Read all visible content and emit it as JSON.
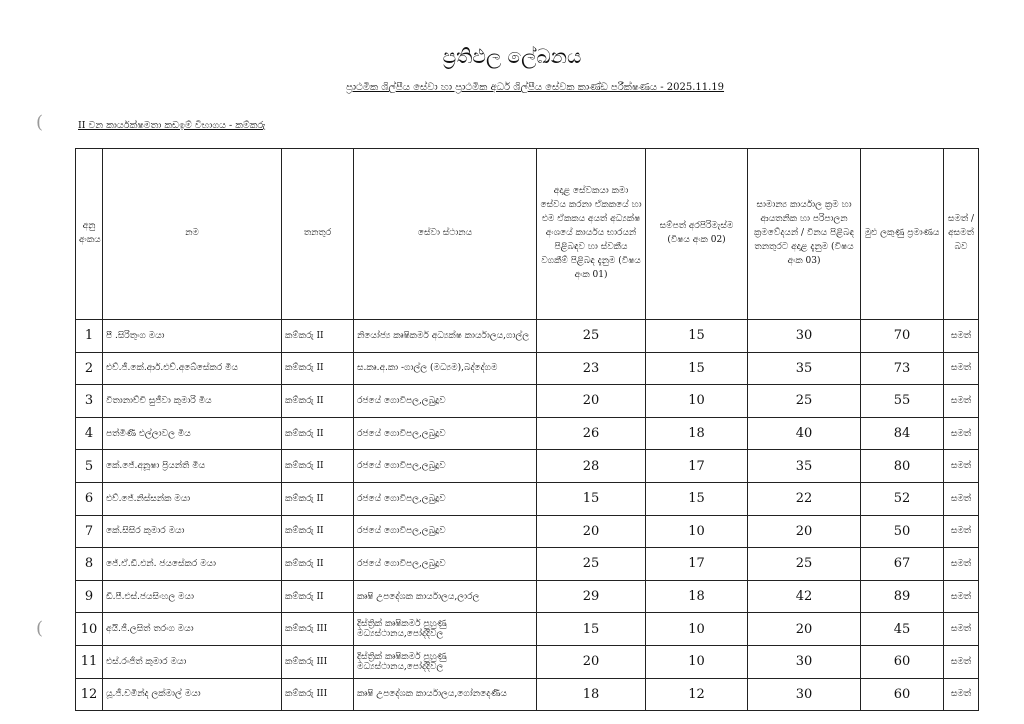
{
  "document": {
    "title": "ප්‍රතිඵල ලේඛනය",
    "subtitle": "ප්‍රාථමික ශිල්පීය සේවා හා ප්‍රාථමික අර්ධ ශිල්පීය සේවක කාණ්ඩ පරීක්ෂණය - 2025.11.19",
    "section": "II වන කාර්යක්ෂමතා කඩඉම් විභාගය - කම්කරු"
  },
  "table": {
    "headers": [
      "අනු අංකය",
      "නම",
      "තනතුර",
      "සේවා ස්ථානය",
      "අදාළ සේවකයා කමා සේවය කරනා ඒකකයේ හා එම ඒකකය අයත් අධ්‍යක්ෂ අංශයේ කාර්යය භාරයන් පිළිබඳව හා ස්වකීය වගකීම් පිළිබඳ දැනුම (විෂය අංක 01)",
      "සම්පත් අරපිරිමැස්ම (විෂය අංක 02)",
      "සාමාන්‍ය කාර්යාල ක්‍රම හා ආයතනික හා පරිපාලන ක්‍රමවේදයන් / විනය පිළිබඳ තනතුරට අදාළ දැනුම (විෂය අංක 03)",
      "මුළු ලකුණු ප්‍රමාණය",
      "සමත් / අසමත් බව"
    ],
    "rows": [
      {
        "no": "1",
        "name": "පී .සිරිතුංග මයා",
        "post": "කම්කරු II",
        "station": "නියෝජ්‍ය කෘෂිකර්ම අධ්‍යක්ෂ කාර්යාලය,ගාල්ල",
        "s1": "25",
        "s2": "15",
        "s3": "30",
        "total": "70",
        "result": "සමත්"
      },
      {
        "no": "2",
        "name": "එච්.ජී.කේ.ආර්.එච්.අබේසේකර මිය",
        "post": "කම්කරු II",
        "station": "ස.කෘ.අ.කා -ගාල්ල (මධ්‍යම),බද්දේගම",
        "s1": "23",
        "s2": "15",
        "s3": "35",
        "total": "73",
        "result": "සමත්"
      },
      {
        "no": "3",
        "name": "විතානාච්චි සුජීවා කුමාරි මිය",
        "post": "කම්කරු II",
        "station": "රජයේ ගොවිපල,ලබුදූව",
        "s1": "20",
        "s2": "10",
        "s3": "25",
        "total": "55",
        "result": "සමත්"
      },
      {
        "no": "4",
        "name": "පත්මිණී එල්ලාවල මිය",
        "post": "කම්කරු II",
        "station": "රජයේ ගොවිපල,ලබුදූව",
        "s1": "26",
        "s2": "18",
        "s3": "40",
        "total": "84",
        "result": "සමත්"
      },
      {
        "no": "5",
        "name": "කේ.ජේ.අනූෂා ප්‍රියන්ති මිය",
        "post": "කම්කරු II",
        "station": "රජයේ ගොවිපල,ලබුදූව",
        "s1": "28",
        "s2": "17",
        "s3": "35",
        "total": "80",
        "result": "සමත්"
      },
      {
        "no": "6",
        "name": "එච්.ජේ.නිස්සන්ක මයා",
        "post": "කම්කරු II",
        "station": "රජයේ ගොවිපල,ලබුදූව",
        "s1": "15",
        "s2": "15",
        "s3": "22",
        "total": "52",
        "result": "සමත්"
      },
      {
        "no": "7",
        "name": "කේ.සිසිර කුමාර මයා",
        "post": "කම්කරු II",
        "station": "රජයේ ගොවිපල,ලබුදූව",
        "s1": "20",
        "s2": "10",
        "s3": "20",
        "total": "50",
        "result": "සමත්"
      },
      {
        "no": "8",
        "name": "ජේ.ඒ.ඩී.එන්. ජයසේකර මයා",
        "post": "කම්කරු II",
        "station": "රජයේ ගොවිපල,ලබුදූව",
        "s1": "25",
        "s2": "17",
        "s3": "25",
        "total": "67",
        "result": "සමත්"
      },
      {
        "no": "9",
        "name": "ඩී.පී.එස්.ජයසිංහල මයා",
        "post": "කම්කරු II",
        "station": "කෘෂි උපදේශක කාර්යාලය,ලාරල",
        "s1": "29",
        "s2": "18",
        "s3": "42",
        "total": "89",
        "result": "සමත්"
      },
      {
        "no": "10",
        "name": "අයි.ජී.ලසිත් තරංග මයා",
        "post": "කම්කරු III",
        "station": "දිස්ත්‍රික් කෘෂිකර්ම පුහුණු මධ්‍යස්ථානය,පෝද්දිවල",
        "s1": "15",
        "s2": "10",
        "s3": "20",
        "total": "45",
        "result": "සමත්"
      },
      {
        "no": "11",
        "name": "එස්.රංජිත් කුමාර මයා",
        "post": "කම්කරු III",
        "station": "දිස්ත්‍රික් කෘෂිකර්ම පුහුණු මධ්‍යස්ථානය,පෝද්දිවල",
        "s1": "20",
        "s2": "10",
        "s3": "30",
        "total": "60",
        "result": "සමත්"
      },
      {
        "no": "12",
        "name": "යූ.ජී.චමින්ද ලක්මාල් මයා",
        "post": "කම්කරු III",
        "station": "කෘෂි උපදේශක කාර්යාලය,ගෝනදෙණිය",
        "s1": "18",
        "s2": "12",
        "s3": "30",
        "total": "60",
        "result": "සමත්"
      }
    ]
  }
}
